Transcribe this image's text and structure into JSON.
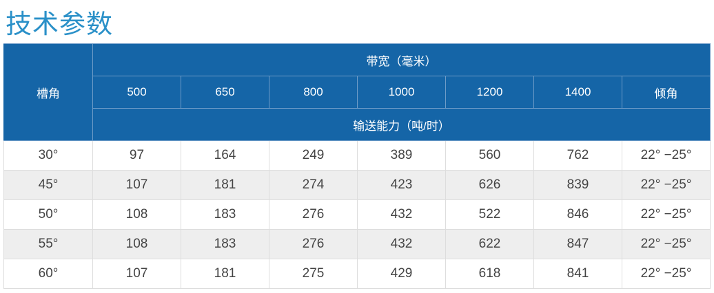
{
  "title": "技术参数",
  "header": {
    "trough_angle": "槽角",
    "belt_width": "带宽（毫米）",
    "widths": [
      "500",
      "650",
      "800",
      "1000",
      "1200",
      "1400"
    ],
    "incline": "倾角",
    "capacity": "输送能力（吨/时）"
  },
  "rows": [
    {
      "angle": "30°",
      "values": [
        "97",
        "164",
        "249",
        "389",
        "560",
        "762"
      ],
      "incline": "22° −25°"
    },
    {
      "angle": "45°",
      "values": [
        "107",
        "181",
        "274",
        "423",
        "626",
        "839"
      ],
      "incline": "22° −25°"
    },
    {
      "angle": "50°",
      "values": [
        "108",
        "183",
        "276",
        "432",
        "522",
        "846"
      ],
      "incline": "22° −25°"
    },
    {
      "angle": "55°",
      "values": [
        "108",
        "183",
        "276",
        "432",
        "622",
        "847"
      ],
      "incline": "22° −25°"
    },
    {
      "angle": "60°",
      "values": [
        "107",
        "181",
        "275",
        "429",
        "618",
        "841"
      ],
      "incline": "22° −25°"
    }
  ],
  "colors": {
    "header_bg": "#1565a7",
    "title": "#2a90c8",
    "alt_row": "#eeeeee"
  }
}
